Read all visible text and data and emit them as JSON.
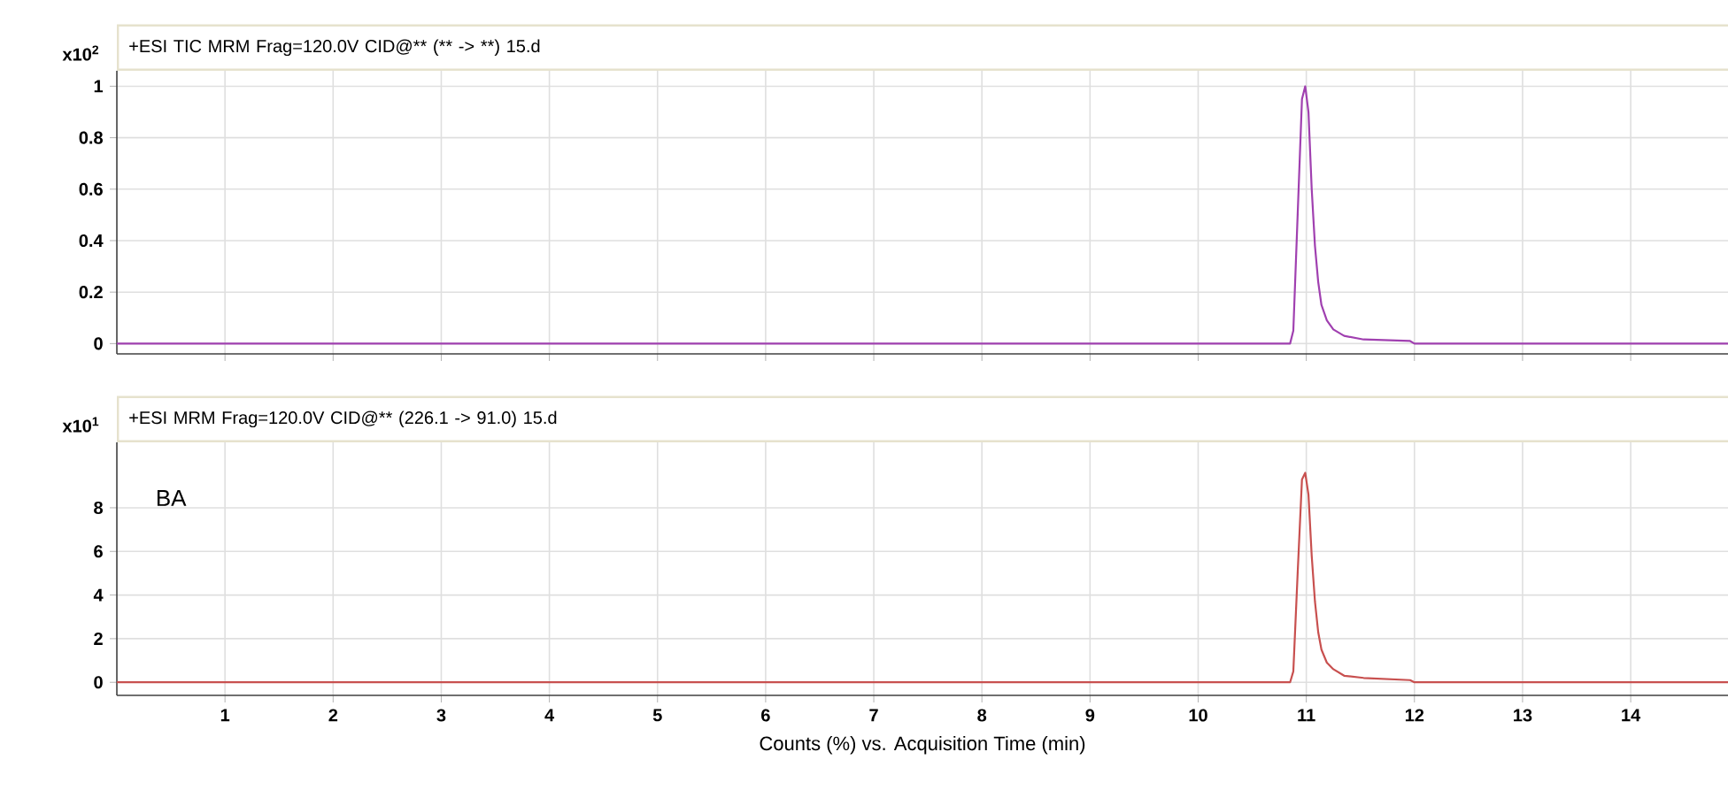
{
  "chart_data": [
    {
      "type": "line",
      "title": "+ESI TIC MRM Frag=120.0V CID@** (** -> **) 15.d",
      "ylabel": "x10$^{2}$",
      "tick_labels": "y",
      "grid": true,
      "marker": "none",
      "xlim": [
        0,
        14.9
      ],
      "ylim": [
        -0.04,
        1.06
      ],
      "xticks": [
        1,
        2,
        3,
        4,
        5,
        6,
        7,
        8,
        9,
        10,
        11,
        12,
        13,
        14
      ],
      "yticks": [
        0,
        0.2,
        0.4,
        0.6,
        0.8,
        1
      ],
      "series": [
        {
          "color": "#a040b0",
          "x": [
            0,
            10.85,
            10.88,
            10.92,
            10.96,
            10.99,
            11.02,
            11.05,
            11.08,
            11.11,
            11.14,
            11.19,
            11.25,
            11.35,
            11.53,
            11.96,
            12.0,
            14.9
          ],
          "values": [
            0,
            0,
            0.05,
            0.5,
            0.95,
            1.0,
            0.9,
            0.6,
            0.38,
            0.24,
            0.15,
            0.09,
            0.055,
            0.03,
            0.016,
            0.01,
            0,
            0
          ]
        }
      ]
    },
    {
      "type": "line",
      "title": "+ESI MRM Frag=120.0V CID@** (226.1 -> 91.0) 15.d",
      "ylabel": "x10$^{1}$",
      "xlabel": "Counts (%) vs. Acquisition Time (min)",
      "annotations": [
        "BA"
      ],
      "grid": true,
      "marker": "none",
      "xlim": [
        0,
        14.9
      ],
      "ylim": [
        -0.6,
        11
      ],
      "xticks": [
        1,
        2,
        3,
        4,
        5,
        6,
        7,
        8,
        9,
        10,
        11,
        12,
        13,
        14
      ],
      "yticks": [
        0,
        2,
        4,
        6,
        8
      ],
      "series": [
        {
          "color": "#c8504f",
          "x": [
            0,
            10.85,
            10.88,
            10.92,
            10.96,
            10.99,
            11.02,
            11.05,
            11.08,
            11.11,
            11.14,
            11.19,
            11.25,
            11.35,
            11.53,
            11.96,
            12.0,
            14.9
          ],
          "values": [
            0,
            0,
            0.5,
            5,
            9.3,
            9.6,
            8.6,
            5.8,
            3.7,
            2.3,
            1.5,
            0.9,
            0.6,
            0.3,
            0.2,
            0.1,
            0,
            0
          ]
        }
      ]
    }
  ]
}
